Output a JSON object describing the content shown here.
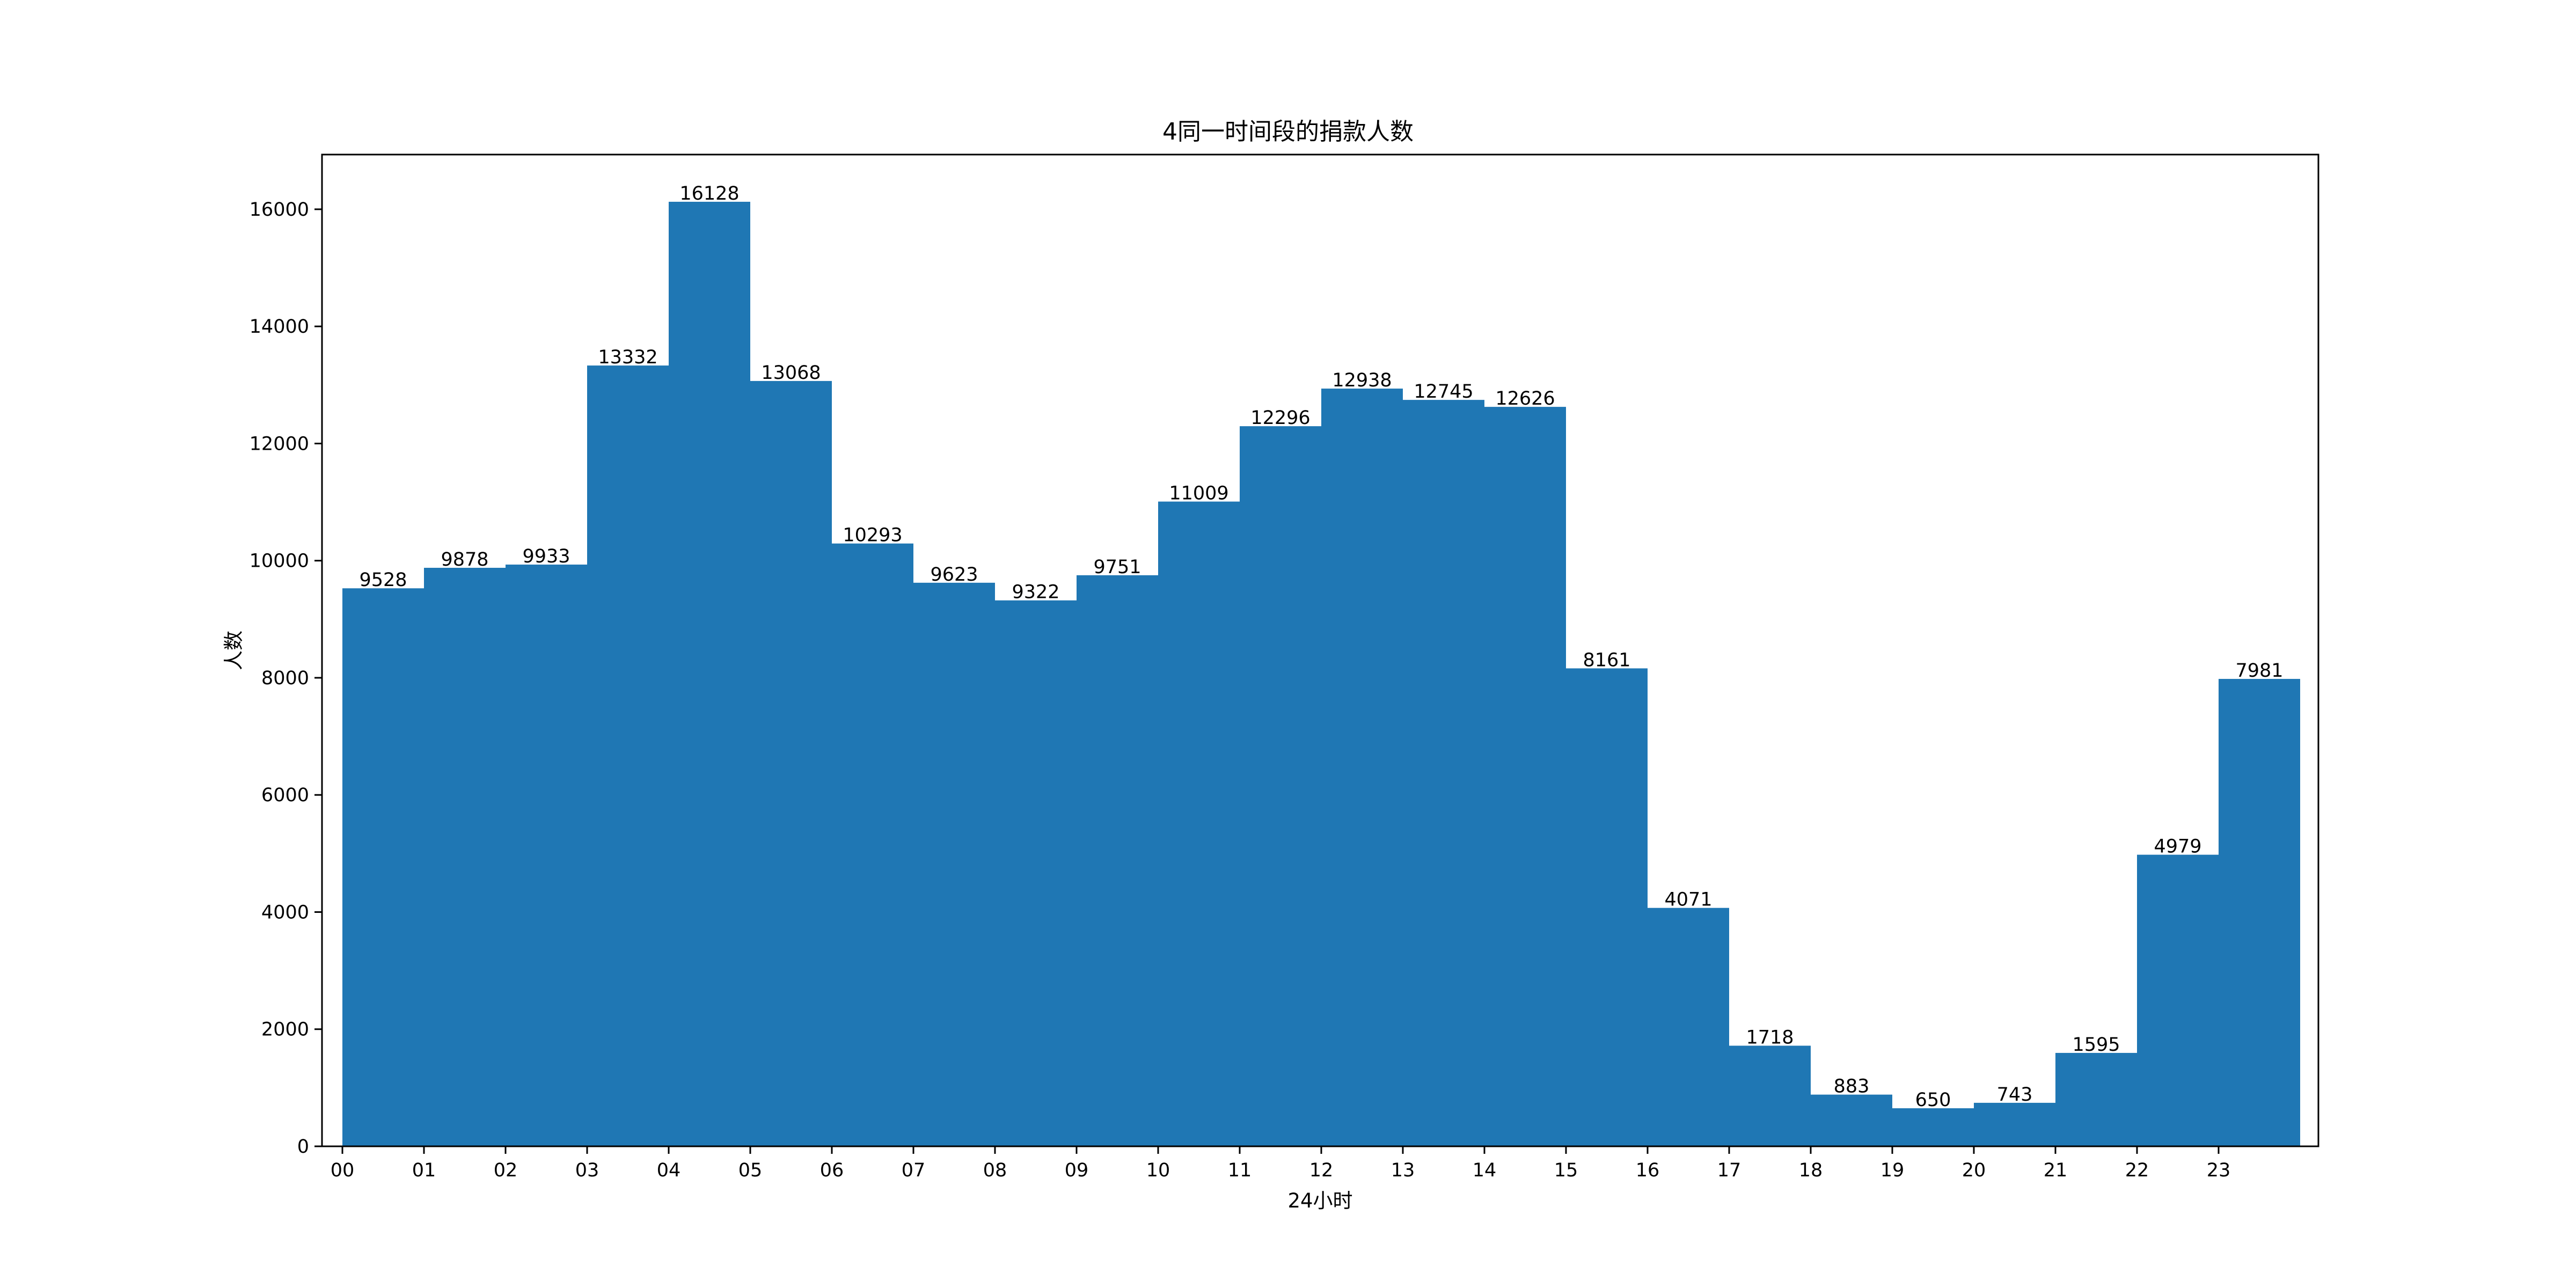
{
  "chart_data": {
    "type": "bar",
    "title": "4同一时间段的捐款人数",
    "xlabel": "24小时",
    "ylabel": "人数",
    "categories": [
      "00",
      "01",
      "02",
      "03",
      "04",
      "05",
      "06",
      "07",
      "08",
      "09",
      "10",
      "11",
      "12",
      "13",
      "14",
      "15",
      "16",
      "17",
      "18",
      "19",
      "20",
      "21",
      "22",
      "23"
    ],
    "values": [
      9528,
      9878,
      9933,
      13332,
      16128,
      13068,
      10293,
      9623,
      9322,
      9751,
      11009,
      12296,
      12938,
      12745,
      12626,
      8161,
      4071,
      1718,
      883,
      650,
      743,
      1595,
      4979,
      7981
    ],
    "ylim": [
      0,
      16934
    ],
    "yticks": [
      0,
      2000,
      4000,
      6000,
      8000,
      10000,
      12000,
      14000,
      16000
    ],
    "grid": false,
    "bar_color": "#1f77b4"
  }
}
